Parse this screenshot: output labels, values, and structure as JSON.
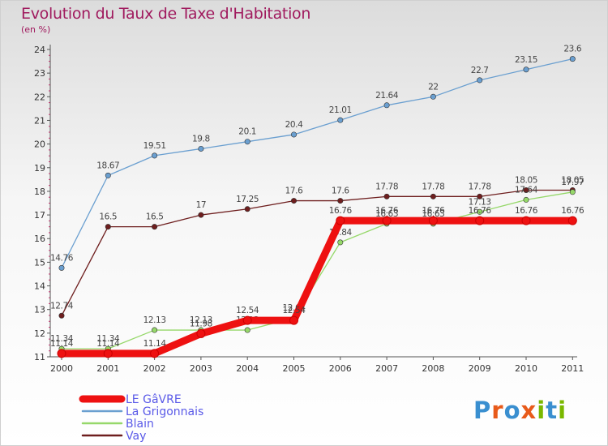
{
  "header": {
    "title": "Evolution du Taux de Taxe d'Habitation",
    "subtitle": "(en %)"
  },
  "logo": {
    "text": "Proxiti",
    "colors": [
      "#3a8fd0",
      "#e85a1a",
      "#3a8fd0",
      "#e85a1a",
      "#7ab800",
      "#3a8fd0",
      "#7ab800"
    ]
  },
  "chart_data": {
    "type": "line",
    "title": "Evolution du Taux de Taxe d'Habitation",
    "ylabel": "(en %)",
    "xlabel": "",
    "ylim": [
      11,
      24
    ],
    "yticks": [
      "11",
      "12",
      "13",
      "14",
      "15",
      "16",
      "17",
      "18",
      "19",
      "20",
      "21",
      "22",
      "23",
      "24"
    ],
    "categories": [
      "2000",
      "2001",
      "2002",
      "2003",
      "2004",
      "2005",
      "2006",
      "2007",
      "2008",
      "2009",
      "2010",
      "2011"
    ],
    "grid": false,
    "legend_position": "bottom-left",
    "series": [
      {
        "name": "La Grigonnais",
        "color": "#6a9fd0",
        "values": [
          14.76,
          18.67,
          19.51,
          19.8,
          20.1,
          20.4,
          21.01,
          21.64,
          22,
          22.7,
          23.15,
          23.6
        ],
        "labels": [
          "14.76",
          "18.67",
          "19.51",
          "19.8",
          "20.1",
          "20.4",
          "21.01",
          "21.64",
          "22",
          "22.7",
          "23.15",
          "23.6"
        ]
      },
      {
        "name": "Vay",
        "color": "#6e1e1e",
        "values": [
          12.74,
          16.5,
          16.5,
          17,
          17.25,
          17.6,
          17.6,
          17.78,
          17.78,
          17.78,
          18.05,
          18.05
        ],
        "labels": [
          "12.74",
          "16.5",
          "16.5",
          "17",
          "17.25",
          "17.6",
          "17.6",
          "17.78",
          "17.78",
          "17.78",
          "18.05",
          "18.05"
        ]
      },
      {
        "name": "Blain",
        "color": "#96d86a",
        "values": [
          11.34,
          11.34,
          12.13,
          12.13,
          12.13,
          12.64,
          15.84,
          16.63,
          16.63,
          17.13,
          17.64,
          17.97
        ],
        "labels": [
          "11.34",
          "11.34",
          "12.13",
          "12.13",
          "12.13",
          "12.64",
          "15.84",
          "16.63",
          "16.63",
          "17.13",
          "17.64",
          "17.97"
        ]
      },
      {
        "name": "LE GâVRE",
        "color": "#ee1111",
        "values": [
          11.14,
          11.14,
          11.14,
          11.98,
          12.54,
          12.54,
          16.76,
          16.76,
          16.76,
          16.76,
          16.76,
          16.76
        ],
        "labels": [
          "11.14",
          "11.14",
          "11.14",
          "11.98",
          "12.54",
          "12.54",
          "16.76",
          "16.76",
          "16.76",
          "16.76",
          "16.76",
          "16.76"
        ]
      }
    ],
    "legend": [
      {
        "name": "LE GâVRE",
        "color": "#ee1111"
      },
      {
        "name": "La Grigonnais",
        "color": "#6a9fd0"
      },
      {
        "name": "Blain",
        "color": "#96d86a"
      },
      {
        "name": "Vay",
        "color": "#6e1e1e"
      }
    ]
  }
}
